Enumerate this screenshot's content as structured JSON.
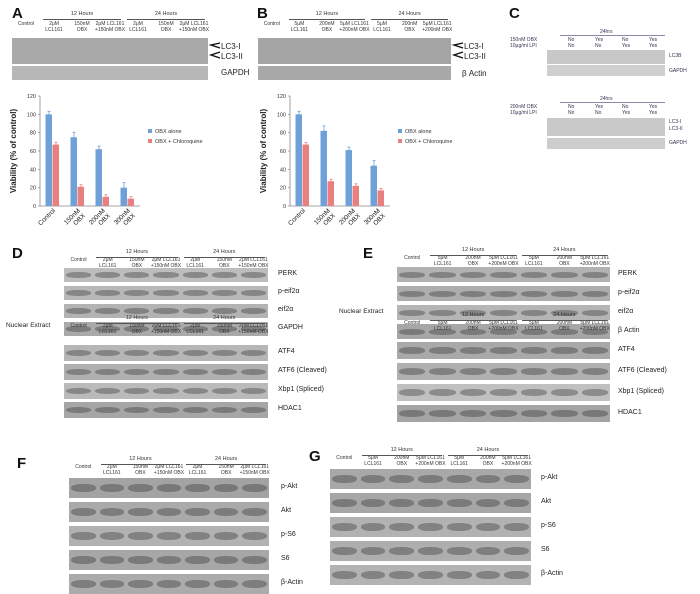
{
  "panels": {
    "A": {
      "letter": "A",
      "groups": [
        "12 Hours",
        "24 Hours"
      ],
      "lanes": [
        "Control",
        "2μM\nLCL161",
        "150nM\nOBX",
        "2μM LCL161\n+150nM OBX",
        "2μM\nLCL161",
        "150nM\nOBX",
        "2μM LCL161\n+150nM OBX"
      ],
      "markers": [
        "LC3-I",
        "LC3-II",
        "GAPDH"
      ]
    },
    "B": {
      "letter": "B",
      "groups": [
        "12 Hours",
        "24 Hours"
      ],
      "lanes": [
        "Control",
        "5μM\nLCL161",
        "200nM\nOBX",
        "5μM LCL161\n+200nM OBX",
        "5μM\nLCL161",
        "200nM\nOBX",
        "5μM LCL161\n+200nM OBX"
      ],
      "markers": [
        "LC3-I",
        "LC3-II",
        "β Actin"
      ]
    },
    "C": {
      "letter": "C",
      "top": {
        "time": "24hrs",
        "rows": [
          "150nM OBX",
          "10μg/ml LPI"
        ],
        "values": [
          [
            "No",
            "Yes",
            "No",
            "Yes"
          ],
          [
            "No",
            "No",
            "Yes",
            "Yes"
          ]
        ],
        "markers": [
          "LC3B",
          "GAPDH"
        ]
      },
      "bottom": {
        "time": "24hrs",
        "rows": [
          "200nM OBX",
          "10μg/ml LPI"
        ],
        "values": [
          [
            "No",
            "Yes",
            "No",
            "Yes"
          ],
          [
            "No",
            "No",
            "Yes",
            "Yes"
          ]
        ],
        "markers": [
          "LC3-I",
          "LC3-II",
          "GAPDH"
        ]
      }
    },
    "D": {
      "letter": "D",
      "groups": [
        "12 Hours",
        "24 Hours"
      ],
      "lanes": [
        "Control",
        "2μM\nLCL161",
        "150nM\nOBX",
        "2μM LCL161\n+150nM OBX",
        "2μM\nLCL161",
        "150nM\nOBX",
        "2μM LCL161\n+150nM OBX"
      ],
      "markers_top": [
        "PERK",
        "p-eif2α",
        "eif2α",
        "GAPDH"
      ],
      "nuclear_label": "Nuclear Extract",
      "markers_bottom": [
        "ATF4",
        "ATF6 (Cleaved)",
        "Xbp1 (Spliced)",
        "HDAC1"
      ]
    },
    "E": {
      "letter": "E",
      "groups": [
        "12 Hours",
        "24 Hours"
      ],
      "lanes": [
        "Control",
        "5μM\nLCL161",
        "200nM\nOBX",
        "5μM LCL161\n+200nM OBX",
        "5μM\nLCL161",
        "200nM\nOBX",
        "5μM LCL161\n+200nM OBX"
      ],
      "markers_top": [
        "PERK",
        "p-eif2α",
        "eif2α",
        "β Actin"
      ],
      "nuclear_label": "Nuclear Extract",
      "markers_bottom": [
        "ATF4",
        "ATF6 (Cleaved)",
        "Xbp1 (Spliced)",
        "HDAC1"
      ]
    },
    "F": {
      "letter": "F",
      "groups": [
        "12 Hours",
        "24 Hours"
      ],
      "lanes": [
        "Control",
        "2μM\nLCL161",
        "150nM\nOBX",
        "2μM LCL161\n+150nM OBX",
        "2μM\nLCL161",
        "150nM\nOBX",
        "2μM LCL161\n+150nM OBX"
      ],
      "markers": [
        "p-Akt",
        "Akt",
        "p-S6",
        "S6",
        "β-Actin"
      ]
    },
    "G": {
      "letter": "G",
      "groups": [
        "12 Hours",
        "24 Hours"
      ],
      "lanes": [
        "Control",
        "5μM\nLCL161",
        "200nM\nOBX",
        "5μM LCL161\n+200nM OBX",
        "5μM\nLCL161",
        "200nM\nOBX",
        "5μM LCL161\n+200nM OBX"
      ],
      "markers": [
        "p-Akt",
        "Akt",
        "p-S6",
        "S6",
        "β-Actin"
      ]
    }
  },
  "chart_data": [
    {
      "type": "bar",
      "categories": [
        "Control",
        "150nM\nOBX",
        "200nM\nOBX",
        "300nM\nOBX"
      ],
      "series": [
        {
          "name": "OBX alone",
          "values": [
            100,
            75,
            62,
            20
          ],
          "color": "#6fa0d8"
        },
        {
          "name": "OBX + Chloroquine",
          "values": [
            67,
            21,
            10,
            8
          ],
          "color": "#e88080"
        }
      ],
      "ylabel": "Viability (% of control)",
      "ylim": [
        0,
        120
      ],
      "yticks": [
        0,
        20,
        40,
        60,
        80,
        100,
        120
      ],
      "legend": "right"
    },
    {
      "type": "bar",
      "categories": [
        "Control",
        "150nM\nOBX",
        "200nM\nOBX",
        "300nM\nOBX"
      ],
      "series": [
        {
          "name": "OBX alone",
          "values": [
            100,
            82,
            61,
            44
          ],
          "color": "#6fa0d8"
        },
        {
          "name": "OBX + Chloroquine",
          "values": [
            67,
            27,
            22,
            17
          ],
          "color": "#e88080"
        }
      ],
      "ylabel": "Viability (% of control)",
      "ylim": [
        0,
        120
      ],
      "yticks": [
        0,
        20,
        40,
        60,
        80,
        100,
        120
      ],
      "legend": "right"
    }
  ]
}
